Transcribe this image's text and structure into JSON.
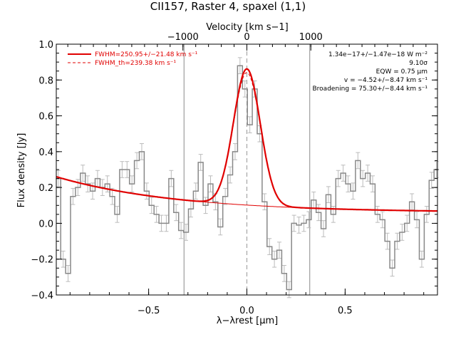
{
  "chart_data": {
    "type": "line",
    "title": "CII157, Raster 4, spaxel (1,1)",
    "xlabel": "λ−λrest [μm]",
    "ylabel": "Flux density [Jy]",
    "top_xlabel": "Velocity [km s−1]",
    "xlim": [
      -0.97,
      0.97
    ],
    "ylim": [
      -0.4,
      1.0
    ],
    "top_xticks": [
      -1000,
      0,
      1000
    ],
    "top_xtick_labels": [
      "−1000",
      "0",
      "1000"
    ],
    "xticks": [
      -0.5,
      0.0,
      0.5
    ],
    "xtick_labels": [
      "−0.5",
      "0.0",
      "0.5"
    ],
    "yticks": [
      -0.4,
      -0.2,
      0.0,
      0.2,
      0.4,
      0.6,
      0.8,
      1.0
    ],
    "ytick_labels": [
      "−0.4",
      "−0.2",
      "0.0",
      "0.2",
      "0.4",
      "0.6",
      "0.8",
      "1.0"
    ],
    "vertical_lines": [
      -0.32,
      0.0,
      0.32
    ],
    "grid": false,
    "legend_position": "top-left",
    "legend": [
      {
        "label": "FWHM=250.95+/−21.48 km s⁻¹",
        "style": "solid"
      },
      {
        "label": "FWHM_th=239.38 km s⁻¹",
        "style": "dashed"
      }
    ],
    "annotations": [
      "1.34e−17+/−1.47e−18 W m⁻²",
      "9.10σ",
      "EQW = 0.75 μm",
      "v = −4.52+/−8.47 km s⁻¹",
      "Broadening = 75.30+/−8.44 km s⁻¹"
    ],
    "series": [
      {
        "type": "step",
        "color": "#888888",
        "x": [
          -0.96,
          -0.935,
          -0.91,
          -0.885,
          -0.86,
          -0.835,
          -0.81,
          -0.785,
          -0.76,
          -0.735,
          -0.71,
          -0.685,
          -0.66,
          -0.635,
          -0.61,
          -0.585,
          -0.56,
          -0.535,
          -0.51,
          -0.485,
          -0.46,
          -0.435,
          -0.41,
          -0.385,
          -0.36,
          -0.335,
          -0.31,
          -0.285,
          -0.26,
          -0.235,
          -0.21,
          -0.185,
          -0.16,
          -0.135,
          -0.11,
          -0.085,
          -0.06,
          -0.035,
          -0.01,
          0.015,
          0.04,
          0.065,
          0.09,
          0.115,
          0.14,
          0.165,
          0.19,
          0.215,
          0.24,
          0.265,
          0.29,
          0.315,
          0.34,
          0.365,
          0.39,
          0.415,
          0.44,
          0.465,
          0.49,
          0.515,
          0.54,
          0.565,
          0.59,
          0.615,
          0.64,
          0.665,
          0.69,
          0.715,
          0.74,
          0.765,
          0.79,
          0.815,
          0.84,
          0.865,
          0.89,
          0.915,
          0.94,
          0.965
        ],
        "y": [
          0.25,
          -0.2,
          -0.28,
          0.15,
          0.2,
          0.28,
          0.22,
          0.18,
          0.25,
          0.2,
          0.22,
          0.15,
          0.05,
          0.3,
          0.3,
          0.22,
          0.35,
          0.4,
          0.18,
          0.1,
          0.05,
          0.0,
          0.0,
          0.25,
          0.06,
          -0.04,
          -0.05,
          0.08,
          0.18,
          0.34,
          0.1,
          0.22,
          0.12,
          -0.02,
          0.15,
          0.27,
          0.4,
          0.88,
          0.75,
          0.55,
          0.75,
          0.5,
          0.12,
          -0.13,
          -0.2,
          -0.15,
          -0.28,
          -0.37,
          0.0,
          -0.01,
          0.0,
          0.02,
          0.13,
          0.06,
          -0.03,
          0.16,
          0.05,
          0.25,
          0.28,
          0.22,
          0.18,
          0.35,
          0.25,
          0.28,
          0.22,
          0.05,
          0.02,
          -0.1,
          -0.25,
          -0.1,
          -0.05,
          0.0,
          0.12,
          0.02,
          -0.2,
          0.05,
          0.24,
          0.3
        ]
      },
      {
        "type": "line",
        "color": "#e00000",
        "name": "fit"
      }
    ]
  }
}
